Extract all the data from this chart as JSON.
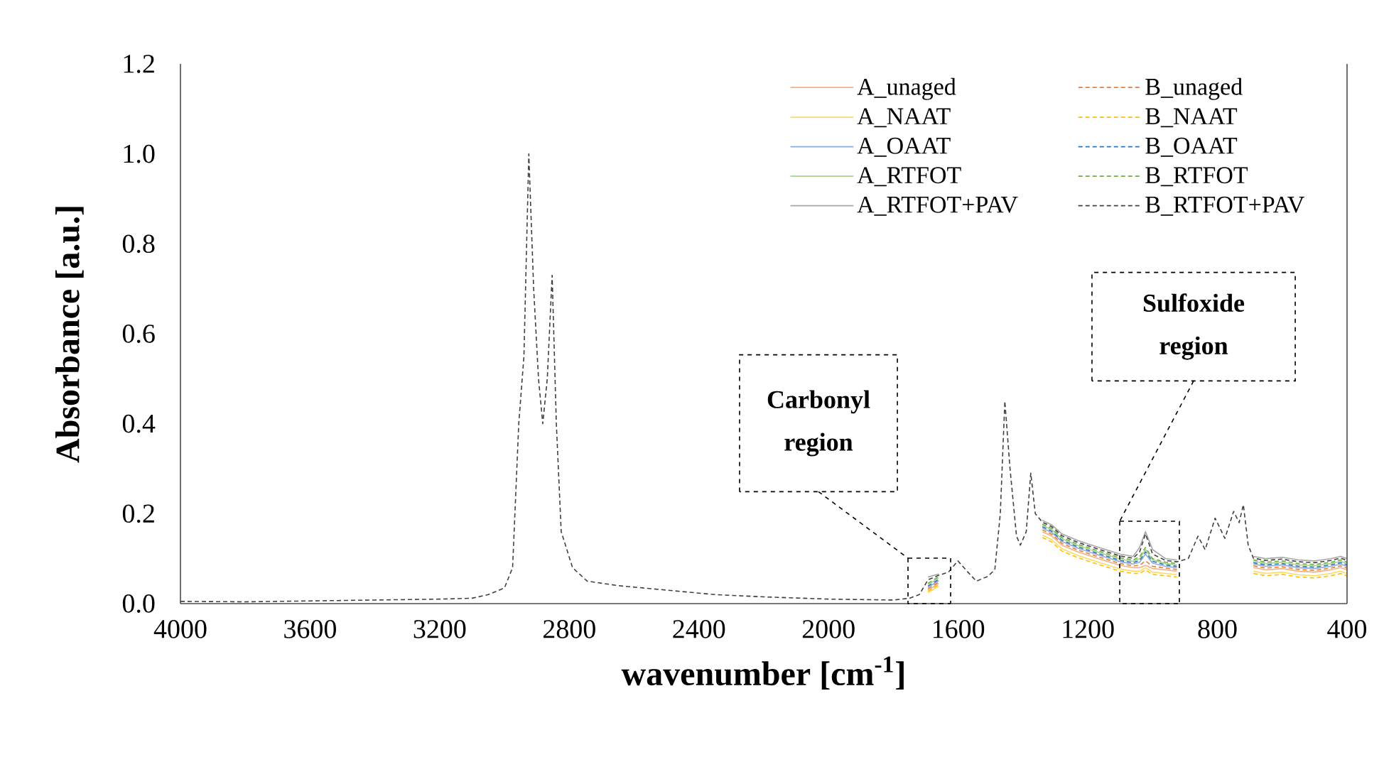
{
  "chart_data": {
    "type": "line",
    "xlabel": "wavenumber [cm$^{-1}$]",
    "ylabel": "Absorbance [a.u.]",
    "xlim": [
      4000,
      400
    ],
    "xticks": [
      4000,
      3600,
      3200,
      2800,
      2400,
      2000,
      1600,
      1200,
      800,
      400
    ],
    "ylim": [
      0,
      1.2
    ],
    "yticks": [
      {
        "value": 0,
        "label": "0.0"
      },
      {
        "value": 0.2,
        "label": "0.2"
      },
      {
        "value": 0.4,
        "label": "0.4"
      },
      {
        "value": 0.6,
        "label": "0.6"
      },
      {
        "value": 0.8,
        "label": "0.8"
      },
      {
        "value": 1.0,
        "label": "1.0"
      },
      {
        "value": 1.2,
        "label": "1.2"
      }
    ],
    "grid": false,
    "legend": "top right",
    "x": [
      4000,
      3800,
      3600,
      3400,
      3200,
      3100,
      3050,
      3000,
      2975,
      2956,
      2940,
      2925,
      2910,
      2895,
      2882,
      2868,
      2853,
      2840,
      2825,
      2790,
      2745,
      2650,
      2500,
      2350,
      2200,
      2000,
      1800,
      1750,
      1720,
      1693,
      1660,
      1630,
      1601,
      1570,
      1544,
      1510,
      1487,
      1470,
      1456,
      1440,
      1420,
      1408,
      1390,
      1376,
      1362,
      1340,
      1311,
      1280,
      1230,
      1167,
      1100,
      1060,
      1040,
      1022,
      1000,
      960,
      925,
      890,
      860,
      838,
      807,
      777,
      750,
      733,
      720,
      705,
      689,
      650,
      600,
      550,
      500,
      450,
      420,
      400
    ],
    "series": [
      {
        "name": "A_unaged",
        "color": "#f4b183",
        "line_style": "solid",
        "values": [
          null,
          null,
          null,
          null,
          null,
          null,
          null,
          null,
          null,
          null,
          null,
          null,
          null,
          null,
          null,
          null,
          null,
          null,
          null,
          null,
          null,
          null,
          null,
          null,
          null,
          null,
          null,
          null,
          null,
          0.03,
          0.045,
          null,
          null,
          null,
          null,
          null,
          null,
          null,
          null,
          null,
          null,
          null,
          null,
          null,
          null,
          0.16,
          0.15,
          0.13,
          0.115,
          0.1,
          0.085,
          0.08,
          0.08,
          0.085,
          0.078,
          0.075,
          0.072,
          null,
          null,
          null,
          null,
          null,
          null,
          null,
          null,
          null,
          0.08,
          0.075,
          0.078,
          0.072,
          0.07,
          0.075,
          0.08,
          0.075
        ]
      },
      {
        "name": "A_NAAT",
        "color": "#ffd966",
        "line_style": "solid",
        "values": [
          null,
          null,
          null,
          null,
          null,
          null,
          null,
          null,
          null,
          null,
          null,
          null,
          null,
          null,
          null,
          null,
          null,
          null,
          null,
          null,
          null,
          null,
          null,
          null,
          null,
          null,
          null,
          null,
          null,
          0.024,
          0.039,
          null,
          null,
          null,
          null,
          null,
          null,
          null,
          null,
          null,
          null,
          null,
          null,
          null,
          null,
          0.152,
          0.142,
          0.122,
          0.107,
          0.092,
          0.077,
          0.072,
          0.072,
          0.08,
          0.07,
          0.067,
          0.064,
          null,
          null,
          null,
          null,
          null,
          null,
          null,
          null,
          null,
          0.072,
          0.067,
          0.07,
          0.064,
          0.062,
          0.067,
          0.072,
          0.067
        ]
      },
      {
        "name": "A_OAAT",
        "color": "#8faadc",
        "line_style": "solid",
        "values": [
          null,
          null,
          null,
          null,
          null,
          null,
          null,
          null,
          null,
          null,
          null,
          null,
          null,
          null,
          null,
          null,
          null,
          null,
          null,
          null,
          null,
          null,
          null,
          null,
          null,
          null,
          null,
          null,
          null,
          0.036,
          0.051,
          null,
          null,
          null,
          null,
          null,
          null,
          null,
          null,
          null,
          null,
          null,
          null,
          null,
          null,
          0.168,
          0.158,
          0.138,
          0.123,
          0.108,
          0.093,
          0.088,
          0.092,
          0.11,
          0.09,
          0.083,
          0.08,
          null,
          null,
          null,
          null,
          null,
          null,
          null,
          null,
          null,
          0.088,
          0.083,
          0.086,
          0.08,
          0.078,
          0.083,
          0.088,
          0.083
        ]
      },
      {
        "name": "A_RTFOT",
        "color": "#a9d18e",
        "line_style": "solid",
        "values": [
          null,
          null,
          null,
          null,
          null,
          null,
          null,
          null,
          null,
          null,
          null,
          null,
          null,
          null,
          null,
          null,
          null,
          null,
          null,
          null,
          null,
          null,
          null,
          null,
          null,
          null,
          null,
          null,
          null,
          0.042,
          0.057,
          null,
          null,
          null,
          null,
          null,
          null,
          null,
          null,
          null,
          null,
          null,
          null,
          null,
          null,
          0.174,
          0.164,
          0.144,
          0.129,
          0.114,
          0.099,
          0.094,
          0.1,
          0.12,
          0.097,
          0.089,
          0.086,
          null,
          null,
          null,
          null,
          null,
          null,
          null,
          null,
          null,
          0.094,
          0.089,
          0.092,
          0.086,
          0.084,
          0.089,
          0.094,
          0.089
        ]
      },
      {
        "name": "A_RTFOT+PAV",
        "color": "#a6a6a6",
        "line_style": "solid",
        "values": [
          null,
          null,
          null,
          null,
          null,
          null,
          null,
          null,
          null,
          null,
          null,
          null,
          null,
          null,
          null,
          null,
          null,
          null,
          null,
          null,
          null,
          null,
          null,
          null,
          null,
          null,
          null,
          null,
          null,
          0.059,
          0.066,
          null,
          null,
          null,
          null,
          null,
          null,
          null,
          null,
          null,
          null,
          null,
          null,
          null,
          null,
          0.185,
          0.175,
          0.155,
          0.14,
          0.125,
          0.11,
          0.105,
          0.125,
          0.16,
          0.12,
          0.1,
          0.097,
          null,
          null,
          null,
          null,
          null,
          null,
          null,
          null,
          null,
          0.105,
          0.1,
          0.103,
          0.097,
          0.095,
          0.1,
          0.105,
          0.1
        ]
      },
      {
        "name": "B_unaged",
        "color": "#ed7d31",
        "line_style": "dashed",
        "values": [
          null,
          null,
          null,
          null,
          null,
          null,
          null,
          null,
          null,
          null,
          null,
          null,
          null,
          null,
          null,
          null,
          null,
          null,
          null,
          null,
          null,
          null,
          null,
          null,
          null,
          null,
          null,
          null,
          null,
          0.033,
          0.048,
          null,
          null,
          null,
          null,
          null,
          null,
          null,
          null,
          null,
          null,
          null,
          null,
          null,
          null,
          0.164,
          0.154,
          0.134,
          0.119,
          0.104,
          0.089,
          0.084,
          0.085,
          0.095,
          0.083,
          0.079,
          0.076,
          null,
          null,
          null,
          null,
          null,
          null,
          null,
          null,
          null,
          0.084,
          0.079,
          0.082,
          0.076,
          0.074,
          0.079,
          0.084,
          0.079
        ]
      },
      {
        "name": "B_NAAT",
        "color": "#ffc000",
        "line_style": "dashed",
        "values": [
          null,
          null,
          null,
          null,
          null,
          null,
          null,
          null,
          null,
          null,
          null,
          null,
          null,
          null,
          null,
          null,
          null,
          null,
          null,
          null,
          null,
          null,
          null,
          null,
          null,
          null,
          null,
          null,
          null,
          0.027,
          0.042,
          null,
          null,
          null,
          null,
          null,
          null,
          null,
          null,
          null,
          null,
          null,
          null,
          null,
          null,
          0.147,
          0.137,
          0.117,
          0.102,
          0.087,
          0.072,
          0.067,
          0.067,
          0.075,
          0.065,
          0.062,
          0.059,
          null,
          null,
          null,
          null,
          null,
          null,
          null,
          null,
          null,
          0.067,
          0.062,
          0.065,
          0.059,
          0.057,
          0.062,
          0.067,
          0.062
        ]
      },
      {
        "name": "B_OAAT",
        "color": "#2e75b6",
        "line_style": "dashed",
        "values": [
          null,
          null,
          null,
          null,
          null,
          null,
          null,
          null,
          null,
          null,
          null,
          null,
          null,
          null,
          null,
          null,
          null,
          null,
          null,
          null,
          null,
          null,
          null,
          null,
          null,
          null,
          null,
          null,
          null,
          0.039,
          0.054,
          null,
          null,
          null,
          null,
          null,
          null,
          null,
          null,
          null,
          null,
          null,
          null,
          null,
          null,
          0.171,
          0.161,
          0.141,
          0.126,
          0.111,
          0.096,
          0.091,
          0.096,
          0.115,
          0.094,
          0.086,
          0.083,
          null,
          null,
          null,
          null,
          null,
          null,
          null,
          null,
          null,
          0.091,
          0.086,
          0.089,
          0.083,
          0.081,
          0.086,
          0.091,
          0.086
        ]
      },
      {
        "name": "B_RTFOT",
        "color": "#70ad47",
        "line_style": "dashed",
        "values": [
          null,
          null,
          null,
          null,
          null,
          null,
          null,
          null,
          null,
          null,
          null,
          null,
          null,
          null,
          null,
          null,
          null,
          null,
          null,
          null,
          null,
          null,
          null,
          null,
          null,
          null,
          null,
          null,
          null,
          0.045,
          0.06,
          null,
          null,
          null,
          null,
          null,
          null,
          null,
          null,
          null,
          null,
          null,
          null,
          null,
          null,
          0.177,
          0.167,
          0.147,
          0.132,
          0.117,
          0.102,
          0.097,
          0.104,
          0.125,
          0.1,
          0.092,
          0.089,
          null,
          null,
          null,
          null,
          null,
          null,
          null,
          null,
          null,
          0.097,
          0.092,
          0.095,
          0.089,
          0.087,
          0.092,
          0.097,
          0.092
        ]
      },
      {
        "name": "B_RTFOT+PAV",
        "color": "#404040",
        "line_style": "dashed",
        "values": [
          0.005,
          0.004,
          0.006,
          0.008,
          0.01,
          0.012,
          0.02,
          0.035,
          0.08,
          0.4,
          0.55,
          1.0,
          0.7,
          0.5,
          0.4,
          0.5,
          0.73,
          0.4,
          0.16,
          0.08,
          0.05,
          0.04,
          0.03,
          0.02,
          0.015,
          0.01,
          0.008,
          0.012,
          0.02,
          0.053,
          0.063,
          0.07,
          0.095,
          0.07,
          0.05,
          0.06,
          0.075,
          0.2,
          0.45,
          0.3,
          0.15,
          0.13,
          0.16,
          0.29,
          0.2,
          0.181,
          0.171,
          0.151,
          0.136,
          0.121,
          0.106,
          0.101,
          0.115,
          0.155,
          0.11,
          0.096,
          0.093,
          0.1,
          0.15,
          0.12,
          0.19,
          0.145,
          0.205,
          0.18,
          0.22,
          0.13,
          0.101,
          0.096,
          0.099,
          0.093,
          0.091,
          0.096,
          0.101,
          0.096
        ]
      }
    ],
    "annotations": [
      "Carbonyl region",
      "Sulfoxide region"
    ]
  }
}
